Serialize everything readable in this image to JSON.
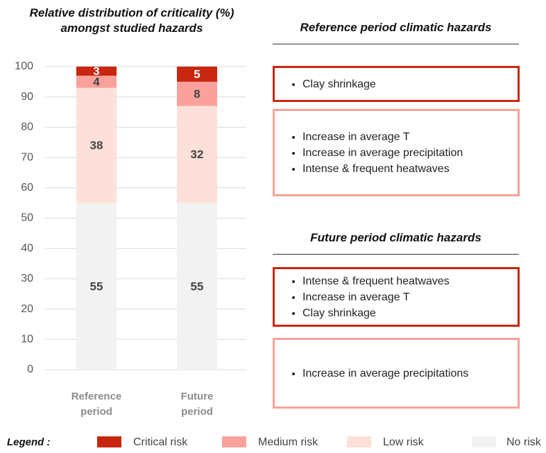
{
  "chart_data": {
    "type": "bar",
    "stacked": true,
    "title": "Relative distribution of criticality (%) amongst studied hazards",
    "categories": [
      "Reference period",
      "Future period"
    ],
    "series": [
      {
        "name": "Critical risk",
        "color": "#c8260f",
        "values": [
          3,
          5
        ]
      },
      {
        "name": "Medium risk",
        "color": "#f9a19a",
        "values": [
          4,
          8
        ]
      },
      {
        "name": "Low risk",
        "color": "#fde0d9",
        "values": [
          38,
          32
        ]
      },
      {
        "name": "No risk",
        "color": "#f2f2f2",
        "values": [
          55,
          55
        ]
      }
    ],
    "ylim": [
      0,
      100
    ],
    "yticks": [
      0,
      10,
      20,
      30,
      40,
      50,
      60,
      70,
      80,
      90,
      100
    ],
    "grid": true,
    "legend_title": "Legend :",
    "legend": "bottom"
  },
  "panels": [
    {
      "title": "Reference period climatic hazards",
      "boxes": [
        {
          "items": [
            "Clay shrinkage"
          ]
        },
        {
          "items": [
            "Increase in average T",
            "Increase in average precipitation",
            "Intense & frequent heatwaves"
          ]
        }
      ]
    },
    {
      "title": "Future period climatic hazards",
      "boxes": [
        {
          "items": [
            "Intense & frequent heatwaves",
            "Increase in average T",
            "Clay shrinkage"
          ]
        },
        {
          "items": [
            "Increase in average precipitations"
          ]
        }
      ]
    }
  ]
}
